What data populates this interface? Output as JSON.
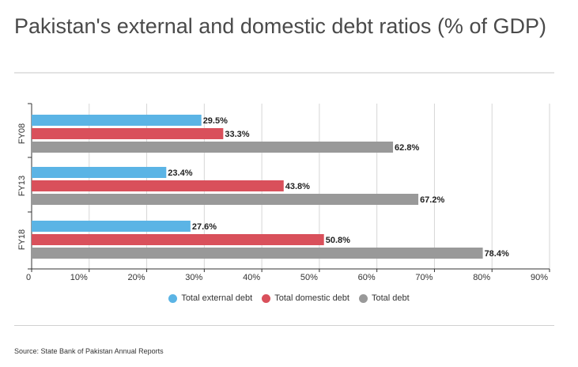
{
  "title": "Pakistan's external and domestic debt ratios (% of GDP)",
  "source": "Source: State Bank of Pakistan Annual Reports",
  "chart_data": {
    "type": "bar",
    "orientation": "horizontal",
    "title": "Pakistan's external and domestic debt ratios (% of GDP)",
    "categories": [
      "FY08",
      "FY13",
      "FY18"
    ],
    "series": [
      {
        "name": "Total external debt",
        "color": "#5bb4e5",
        "values": [
          29.5,
          23.4,
          27.6
        ],
        "labels": [
          "29.5%",
          "23.4%",
          "27.6%"
        ]
      },
      {
        "name": "Total domestic debt",
        "color": "#d9505b",
        "values": [
          33.3,
          43.8,
          50.8
        ],
        "labels": [
          "33.3%",
          "43.8%",
          "50.8%"
        ]
      },
      {
        "name": "Total debt",
        "color": "#999999",
        "values": [
          62.8,
          67.2,
          78.4
        ],
        "labels": [
          "62.8%",
          "67.2%",
          "78.4%"
        ]
      }
    ],
    "xlim": [
      0,
      90
    ],
    "xticks": [
      0,
      10,
      20,
      30,
      40,
      50,
      60,
      70,
      80,
      90
    ],
    "xtick_labels": [
      "0",
      "10%",
      "20%",
      "30%",
      "40%",
      "50%",
      "60%",
      "70%",
      "80%",
      "90%"
    ],
    "grid": true,
    "legend_position": "bottom-center"
  }
}
